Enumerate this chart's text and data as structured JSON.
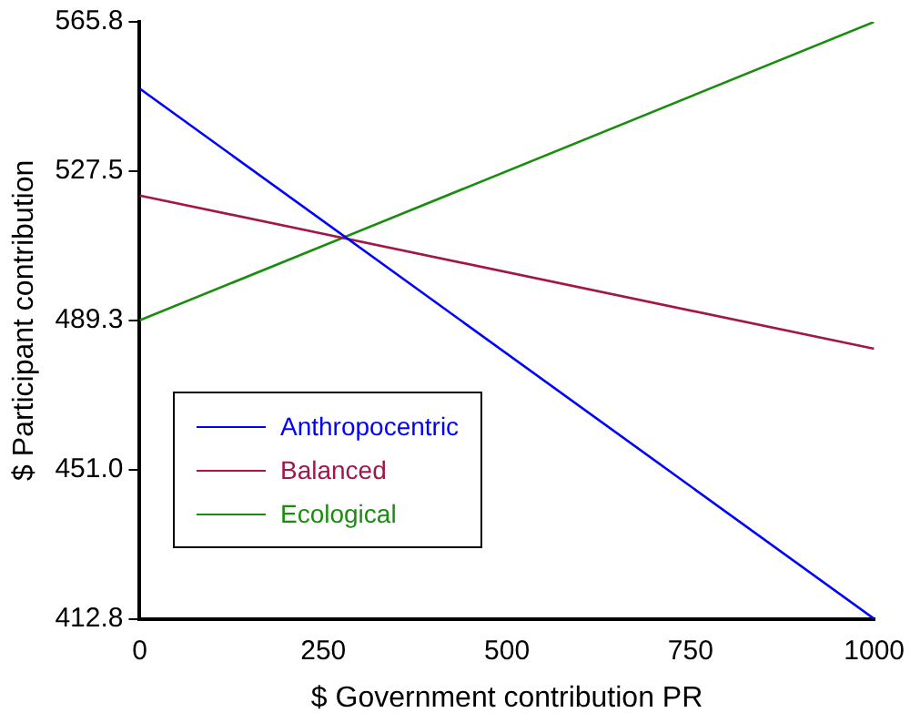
{
  "chart_data": {
    "type": "line",
    "xlabel": "$ Government contribution PR",
    "ylabel": "$ Participant contribution",
    "x": [
      0,
      1000
    ],
    "series": [
      {
        "name": "Anthropocentric",
        "color": "#0000ff",
        "values": [
          548.7,
          412.8
        ]
      },
      {
        "name": "Balanced",
        "color": "#a3164a",
        "values": [
          521.3,
          482.0
        ]
      },
      {
        "name": "Ecological",
        "color": "#1a8c0f",
        "values": [
          489.3,
          565.8
        ]
      }
    ],
    "xlim": [
      0,
      1000
    ],
    "xticks": [
      0,
      250,
      500,
      750,
      1000
    ],
    "ylim": [
      412.8,
      565.8
    ],
    "yticks": [
      412.8,
      {
        "value": 451,
        "label": "451.0"
      },
      489.3,
      527.5,
      565.8
    ],
    "grid": false,
    "legend": "left",
    "marker": "none",
    "line_style": "solid"
  }
}
